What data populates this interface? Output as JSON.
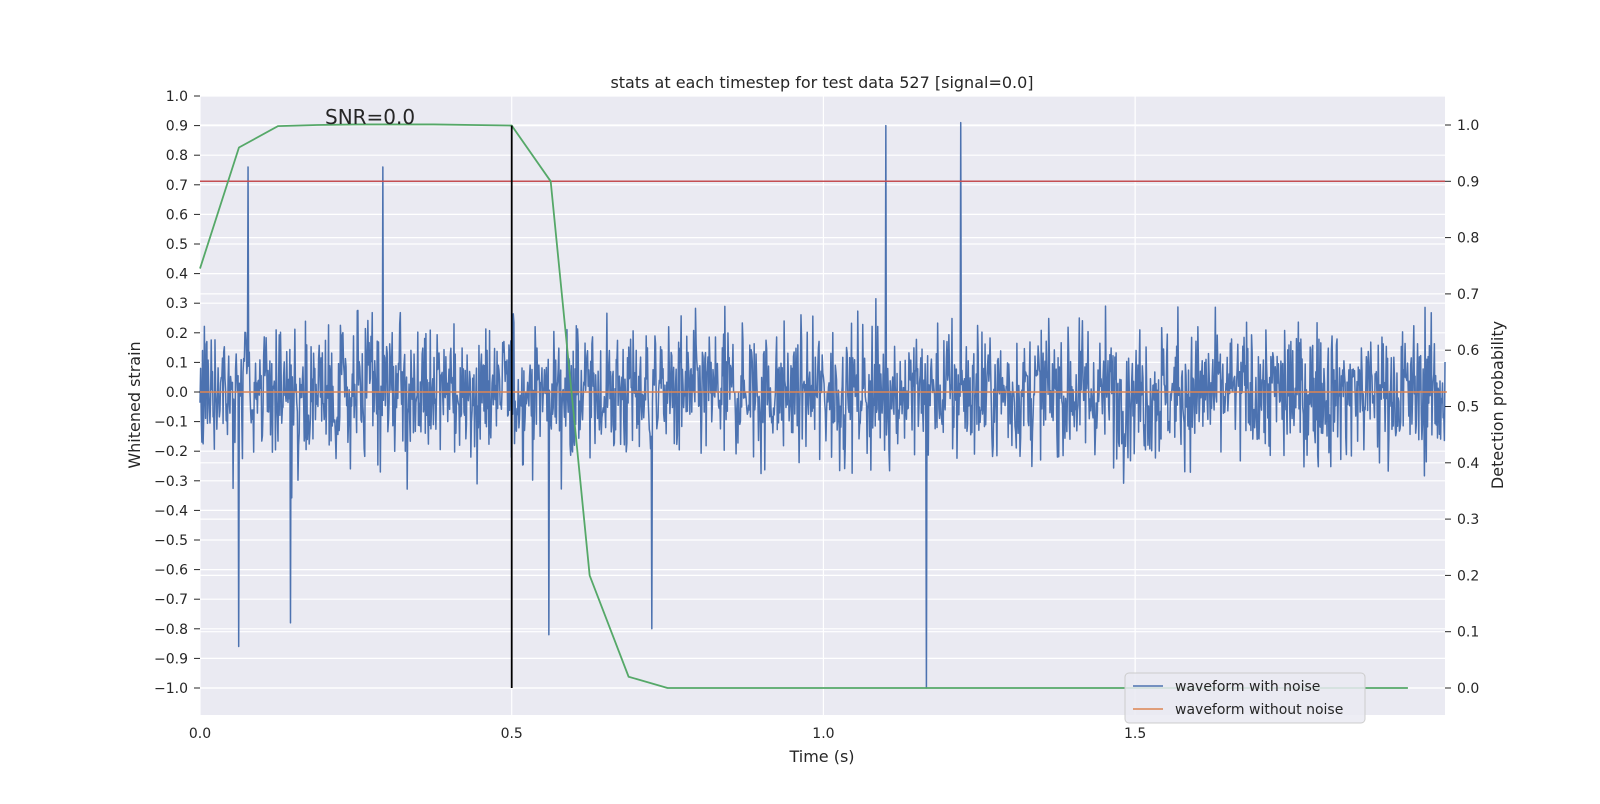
{
  "chart_data": {
    "type": "line",
    "title": "stats at each timestep for test data 527 [signal=0.0]",
    "xlabel": "Time (s)",
    "ylabel": "Whitened strain",
    "ylabel_right": "Detection probability",
    "annotation": "SNR=0.0",
    "xlim": [
      0.0,
      2.0
    ],
    "ylim": [
      -1.09,
      1.0
    ],
    "ylim_right": [
      -0.047,
      1.05
    ],
    "x_ticks": [
      0.0,
      0.5,
      1.0,
      1.5
    ],
    "x_tick_labels": [
      "0.0",
      "0.5",
      "1.0",
      "1.5"
    ],
    "y_ticks": [
      1.0,
      0.9,
      0.8,
      0.7,
      0.6,
      0.5,
      0.4,
      0.3,
      0.2,
      0.1,
      0.0,
      -0.1,
      -0.2,
      -0.3,
      -0.4,
      -0.5,
      -0.6,
      -0.7,
      -0.8,
      -0.9,
      -1.0
    ],
    "y_tick_labels": [
      "1.0",
      "0.9",
      "0.8",
      "0.7",
      "0.6",
      "0.5",
      "0.4",
      "0.3",
      "0.2",
      "0.1",
      "0.0",
      "−0.1",
      "−0.2",
      "−0.3",
      "−0.4",
      "−0.5",
      "−0.6",
      "−0.7",
      "−0.8",
      "−0.9",
      "−1.0"
    ],
    "y_right_ticks": [
      1.0,
      0.9,
      0.8,
      0.7,
      0.6,
      0.5,
      0.4,
      0.3,
      0.2,
      0.1,
      0.0
    ],
    "y_right_tick_labels": [
      "1.0",
      "0.9",
      "0.8",
      "0.7",
      "0.6",
      "0.5",
      "0.4",
      "0.3",
      "0.2",
      "0.1",
      "0.0"
    ],
    "grid": true,
    "legend_position": "bottom-right",
    "series": [
      {
        "name": "waveform with noise",
        "color": "#4c72b0",
        "description": "whitened noisy strain, approx. 2000 samples over 0-2 s, amplitude mostly within ±0.5, extremes near 0.91 and -1.0",
        "samples": 1996,
        "x_start": 0.0,
        "x_end": 1.997,
        "peaks": [
          [
            0.077,
            0.76
          ],
          [
            0.293,
            0.76
          ],
          [
            1.1,
            0.9
          ],
          [
            1.22,
            0.91
          ],
          [
            0.062,
            -0.86
          ],
          [
            0.145,
            -0.78
          ],
          [
            0.725,
            -0.8
          ],
          [
            1.165,
            -1.0
          ],
          [
            0.56,
            -0.82
          ]
        ]
      },
      {
        "name": "waveform without noise",
        "color": "#dd8452",
        "x": [
          0.0,
          2.0
        ],
        "y": [
          0.0,
          0.0
        ]
      },
      {
        "name": "",
        "color": "#55a868",
        "axis": "right",
        "x": [
          0.0,
          0.0625,
          0.125,
          0.1875,
          0.25,
          0.3125,
          0.375,
          0.4375,
          0.5,
          0.5625,
          0.625,
          0.6875,
          0.75,
          0.8125,
          0.875,
          0.9375,
          1.0,
          1.0625,
          1.125,
          1.1875,
          1.25,
          1.3125,
          1.375,
          1.4375,
          1.5,
          1.5625,
          1.625,
          1.6875,
          1.75,
          1.8125,
          1.875,
          1.9375
        ],
        "y": [
          0.745,
          0.96,
          0.998,
          1.0,
          1.001,
          1.001,
          1.001,
          1.0,
          0.999,
          0.9,
          0.2,
          0.02,
          0.0,
          0.0,
          0.0,
          0.0,
          0.0,
          0.0,
          0.0,
          0.0,
          0.0,
          0.0,
          0.0,
          0.0,
          0.0,
          0.0,
          0.0,
          0.0,
          0.0,
          0.0,
          0.0,
          0.0
        ]
      }
    ],
    "hlines": [
      {
        "y": 0.9,
        "axis": "right",
        "color": "#c44e52"
      }
    ],
    "vlines": [
      {
        "x": 0.5,
        "y_from": -1.0,
        "y_to": 0.9,
        "color": "#000000"
      }
    ]
  }
}
